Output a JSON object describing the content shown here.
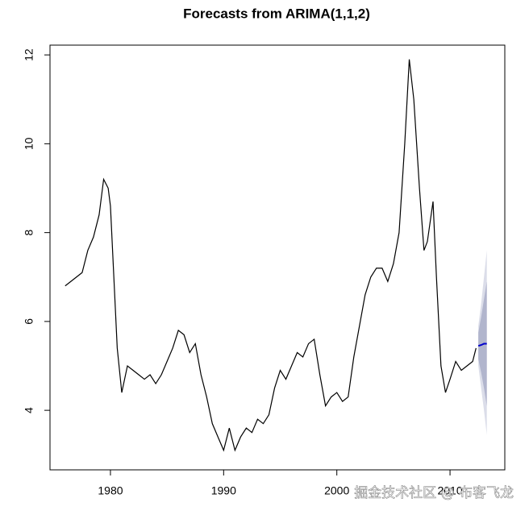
{
  "chart_data": {
    "type": "line",
    "title": "Forecasts from ARIMA(1,1,2)",
    "x": [
      1976.0,
      1976.5,
      1977.0,
      1977.5,
      1978.0,
      1978.5,
      1979.0,
      1979.4,
      1979.8,
      1980.0,
      1980.3,
      1980.6,
      1981.0,
      1981.5,
      1982.0,
      1982.5,
      1983.0,
      1983.5,
      1984.0,
      1984.5,
      1985.0,
      1985.5,
      1986.0,
      1986.5,
      1987.0,
      1987.5,
      1988.0,
      1988.5,
      1989.0,
      1989.5,
      1990.0,
      1990.5,
      1991.0,
      1991.5,
      1992.0,
      1992.5,
      1993.0,
      1993.5,
      1994.0,
      1994.5,
      1995.0,
      1995.5,
      1996.0,
      1996.5,
      1997.0,
      1997.5,
      1998.0,
      1998.5,
      1999.0,
      1999.5,
      2000.0,
      2000.5,
      2001.0,
      2001.5,
      2002.0,
      2002.5,
      2003.0,
      2003.5,
      2004.0,
      2004.5,
      2005.0,
      2005.5,
      2006.0,
      2006.4,
      2006.8,
      2007.3,
      2007.7,
      2008.0,
      2008.5,
      2008.8,
      2009.2,
      2009.6,
      2010.0,
      2010.5,
      2011.0,
      2011.5,
      2012.0,
      2012.3
    ],
    "series": [
      {
        "color": "#000000",
        "values": [
          6.8,
          6.9,
          7.0,
          7.1,
          7.6,
          7.9,
          8.4,
          9.2,
          9.0,
          8.6,
          7.0,
          5.4,
          4.4,
          5.0,
          4.9,
          4.8,
          4.7,
          4.8,
          4.6,
          4.8,
          5.1,
          5.4,
          5.8,
          5.7,
          5.3,
          5.5,
          4.8,
          4.3,
          3.7,
          3.4,
          3.1,
          3.6,
          3.1,
          3.4,
          3.6,
          3.5,
          3.8,
          3.7,
          3.9,
          4.5,
          4.9,
          4.7,
          5.0,
          5.3,
          5.2,
          5.5,
          5.6,
          4.8,
          4.1,
          4.3,
          4.4,
          4.2,
          4.3,
          5.2,
          5.9,
          6.6,
          7.0,
          7.2,
          7.2,
          6.9,
          7.3,
          8.0,
          10.0,
          11.9,
          11.0,
          9.0,
          7.6,
          7.8,
          8.7,
          7.0,
          5.0,
          4.4,
          4.7,
          5.1,
          4.9,
          5.0,
          5.1,
          5.4
        ]
      }
    ],
    "forecast": {
      "x": [
        2012.5,
        2012.75,
        2013.0,
        2013.25
      ],
      "values": [
        5.45,
        5.47,
        5.5,
        5.5
      ],
      "color": "#0000cc",
      "lo80": [
        5.15,
        4.85,
        4.5,
        4.1
      ],
      "hi80": [
        5.75,
        6.1,
        6.5,
        6.9
      ],
      "color80": "#b1b5cd",
      "lo95": [
        5.0,
        4.5,
        4.0,
        3.45
      ],
      "hi95": [
        5.9,
        6.4,
        7.0,
        7.6
      ],
      "color95": "#dbdde9"
    },
    "xlim": [
      1974.66,
      2014.84
    ],
    "ylim": [
      2.66,
      12.22
    ],
    "xticks": [
      1980,
      1990,
      2000,
      2010
    ],
    "yticks": [
      4,
      6,
      8,
      10,
      12
    ],
    "watermark": "掘金技术社区 @ 布客飞龙"
  }
}
